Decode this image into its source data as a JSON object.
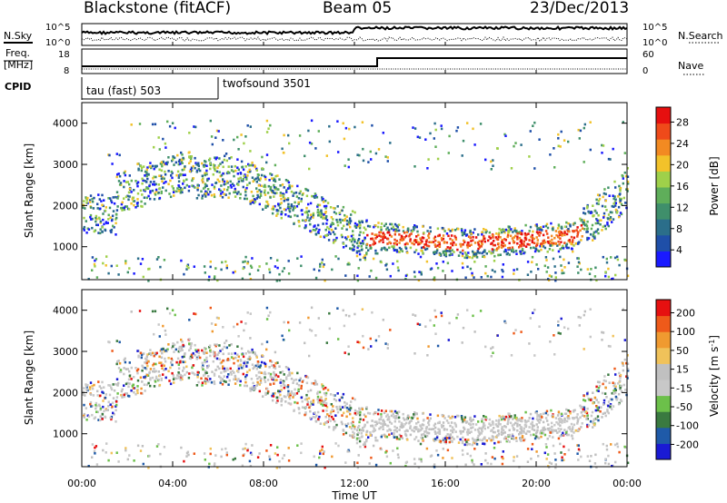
{
  "header": {
    "radar": "Blackstone (fitACF)",
    "beam": "Beam 05",
    "date": "23/Dec/2013"
  },
  "params": {
    "nsky_label": "N.Sky",
    "nsearch_label": "N.Search",
    "freq_label_1": "Freq.",
    "freq_label_2": "[MHz]",
    "nave_label": "Nave",
    "cpid_label": "CPID",
    "nsky_ticks": [
      "10^5",
      "10^0"
    ],
    "nsearch_ticks": [
      "10^5",
      "10^0"
    ],
    "freq_ticks": [
      "18",
      "8"
    ],
    "nave_ticks": [
      "60",
      "0"
    ],
    "cpid_modes": [
      {
        "name": "tau (fast) 503",
        "start_h": 0,
        "end_h": 6
      },
      {
        "name": "twofsound 3501",
        "start_h": 6,
        "end_h": 24
      }
    ],
    "freq_switch_h": 13
  },
  "chart_data": [
    {
      "type": "heatmap",
      "name": "power",
      "ylabel": "Slant Range [km]",
      "ylim": [
        200,
        4500
      ],
      "yticks": [
        "4000",
        "3000",
        "2000",
        "1000"
      ],
      "colorbar": {
        "label": "Power [dB]",
        "ticks": [
          "28",
          "24",
          "20",
          "16",
          "12",
          "8",
          "4"
        ],
        "range": [
          0,
          30
        ]
      }
    },
    {
      "type": "heatmap",
      "name": "velocity",
      "ylabel": "Slant Range [km]",
      "ylim": [
        200,
        4500
      ],
      "yticks": [
        "4000",
        "3000",
        "2000",
        "1000"
      ],
      "colorbar": {
        "label": "Velocity [m s",
        "label_sup": "-1",
        "label_end": "]",
        "ticks": [
          "200",
          "100",
          "50",
          "15",
          "-15",
          "-50",
          "-100",
          "-200"
        ]
      }
    }
  ],
  "xaxis": {
    "label": "Time UT",
    "ticks": [
      "00:00",
      "04:00",
      "08:00",
      "12:00",
      "16:00",
      "20:00",
      "00:00"
    ],
    "range_h": [
      0,
      24
    ]
  },
  "colors": {
    "power_scale": [
      "#1a1aff",
      "#1f4fa8",
      "#2b6e8a",
      "#3f8f6b",
      "#5fae5a",
      "#9fd04a",
      "#f2c22a",
      "#f28a22",
      "#ef4a1a",
      "#e60f0f"
    ],
    "velocity_scale": [
      "#1a1ad4",
      "#1f5aa8",
      "#3a7a40",
      "#6cc04a",
      "#c8c8c8",
      "#c0c0c0",
      "#f0c25a",
      "#f09a30",
      "#ee5a1a",
      "#e61010"
    ]
  }
}
